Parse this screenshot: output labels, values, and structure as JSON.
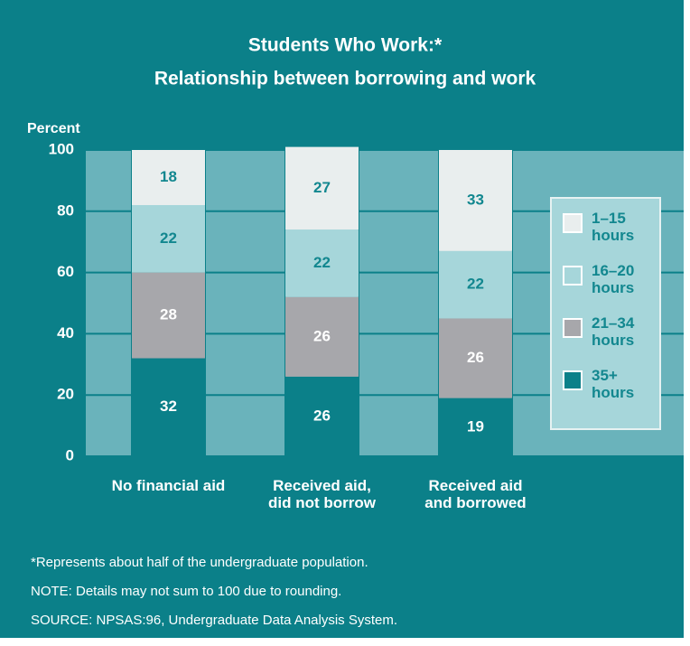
{
  "chart_data": {
    "type": "stacked_bar",
    "title": "Students Who Work:*",
    "subtitle": "Relationship between borrowing and work",
    "y_label": "Percent",
    "categories": [
      "No financial aid",
      "Received aid, did not borrow",
      "Received aid and borrowed"
    ],
    "series": [
      {
        "name": "35+ hours",
        "color": "#0b8089",
        "values": [
          32,
          26,
          19
        ]
      },
      {
        "name": "21–34 hours",
        "color": "#a7a7ab",
        "values": [
          28,
          26,
          26
        ]
      },
      {
        "name": "16–20 hours",
        "color": "#a6d6da",
        "values": [
          22,
          22,
          22
        ]
      },
      {
        "name": "1–15 hours",
        "color": "#e9eeee",
        "values": [
          18,
          27,
          33
        ]
      }
    ],
    "ylim": [
      0,
      100
    ],
    "yticks": [
      0,
      20,
      40,
      60,
      80,
      100
    ],
    "grid": true,
    "notes": [
      "*Represents about half of the undergraduate population.",
      "NOTE: Details may not sum to 100 due to rounding.",
      "SOURCE: NPSAS:96, Undergraduate Data Analysis System."
    ]
  }
}
